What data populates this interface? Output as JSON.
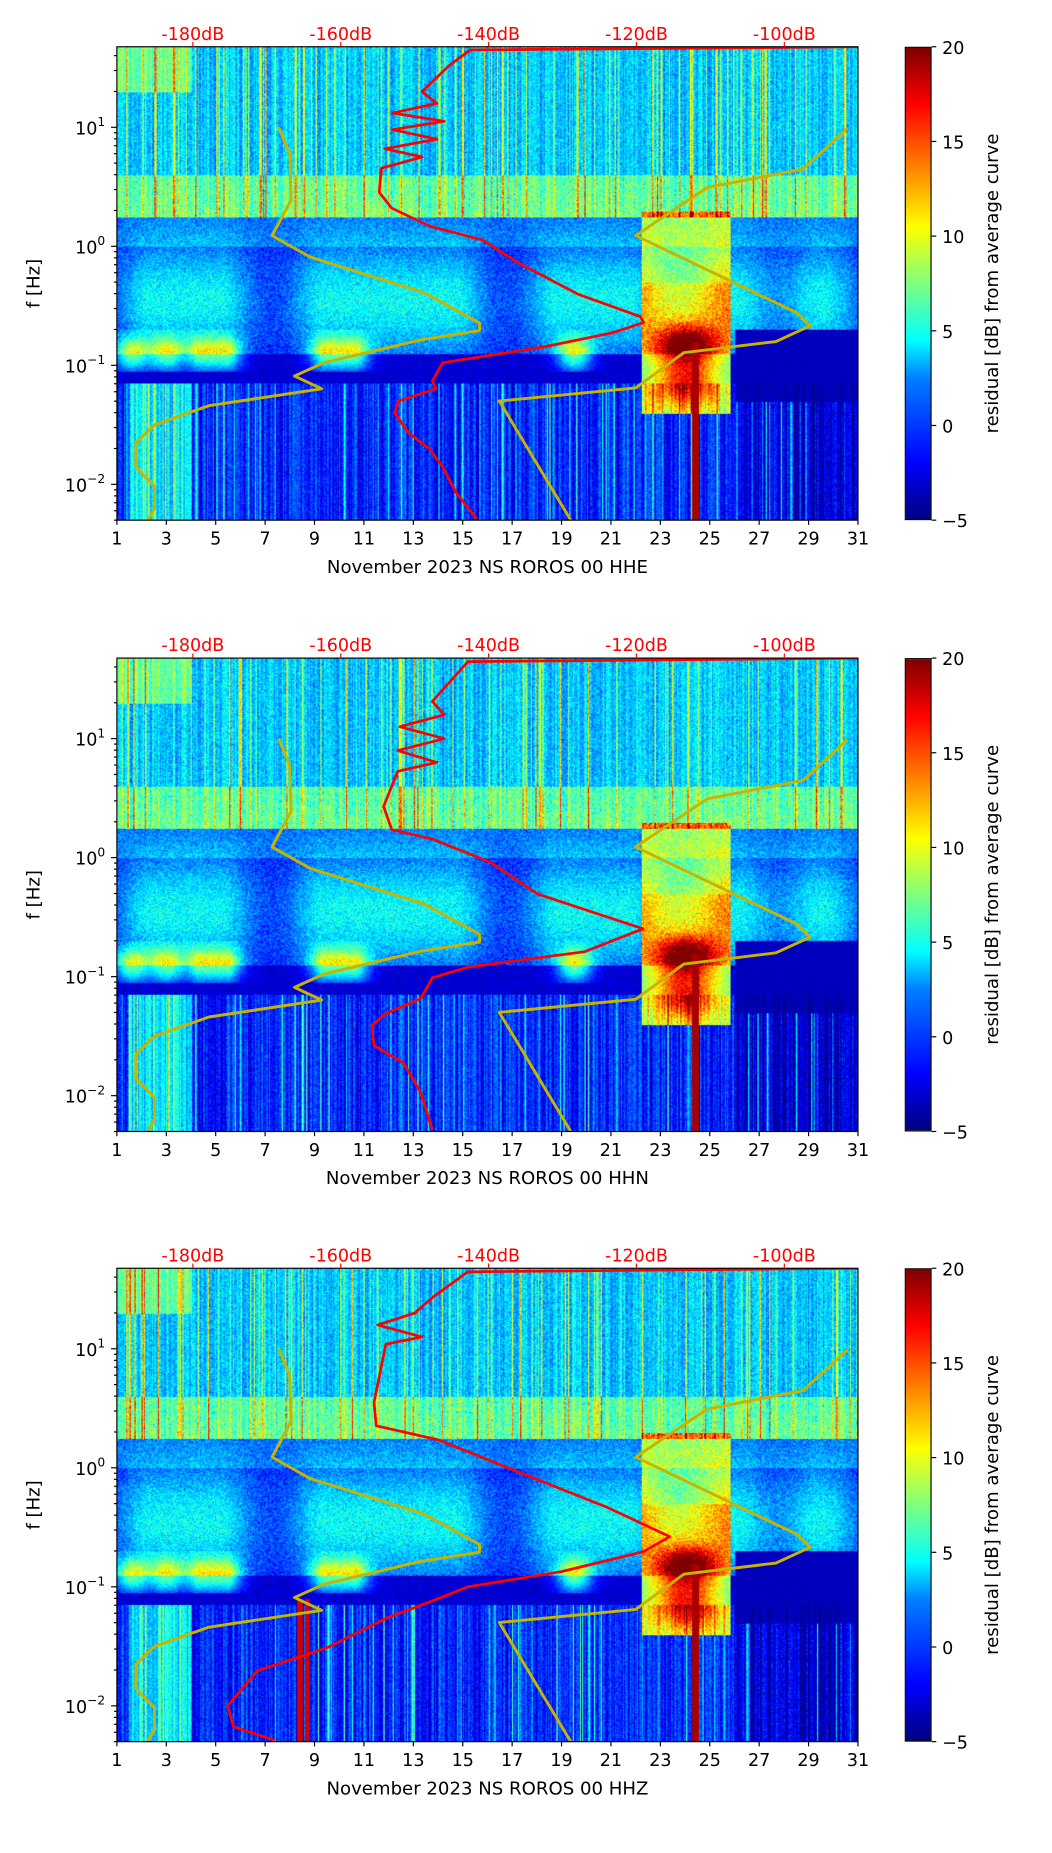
{
  "chart_data": [
    {
      "type": "heatmap",
      "xlabel": "November 2023 NS ROROS 00 HHE",
      "ylabel": "f [Hz]",
      "x_ticks": [
        "1",
        "3",
        "5",
        "7",
        "9",
        "11",
        "13",
        "15",
        "17",
        "19",
        "21",
        "23",
        "25",
        "27",
        "29",
        "31"
      ],
      "xlim": [
        1,
        31
      ],
      "y_scale": "log",
      "ylim": [
        0.005,
        47.5
      ],
      "y_ticks": [
        {
          "exp": "1",
          "value": 10
        },
        {
          "exp": "0",
          "value": 1
        },
        {
          "exp": "−1",
          "value": 0.1
        },
        {
          "exp": "−2",
          "value": 0.01
        }
      ],
      "top_axis_ticks": [
        "-180dB",
        "-160dB",
        "-140dB",
        "-120dB",
        "-100dB"
      ],
      "top_axis_values": [
        -180,
        -160,
        -140,
        -120,
        -100
      ],
      "colorbar": {
        "label": "residual [dB] from average curve",
        "range": [
          -5,
          20
        ],
        "ticks": [
          "20",
          "15",
          "10",
          "5",
          "0",
          "−5"
        ]
      },
      "red_curve": {
        "units": "dB vs log10(f)",
        "points": [
          [
            -90,
            1.676
          ],
          [
            -142.5,
            1.65
          ],
          [
            -145.3,
            1.52
          ],
          [
            -149,
            1.3
          ],
          [
            -147,
            1.2
          ],
          [
            -153,
            1.12
          ],
          [
            -146,
            1.05
          ],
          [
            -153,
            0.98
          ],
          [
            -147,
            0.9
          ],
          [
            -154,
            0.82
          ],
          [
            -149,
            0.75
          ],
          [
            -154.5,
            0.656
          ],
          [
            -154.8,
            0.454
          ],
          [
            -153.1,
            0.32
          ],
          [
            -148,
            0.17
          ],
          [
            -140.7,
            0.05
          ],
          [
            -136.1,
            -0.136
          ],
          [
            -127.8,
            -0.405
          ],
          [
            -119.5,
            -0.59
          ],
          [
            -119,
            -0.64
          ],
          [
            -123.2,
            -0.726
          ],
          [
            -132.4,
            -0.844
          ],
          [
            -146.2,
            -0.978
          ],
          [
            -147.6,
            -1.13
          ],
          [
            -147.1,
            -1.197
          ],
          [
            -152.2,
            -1.3
          ],
          [
            -152.7,
            -1.4
          ],
          [
            -150.8,
            -1.57
          ],
          [
            -148,
            -1.7
          ],
          [
            -146.2,
            -1.855
          ],
          [
            -144.4,
            -2.07
          ],
          [
            -141.6,
            -2.29
          ]
        ]
      }
    },
    {
      "type": "heatmap",
      "xlabel": "November 2023 NS ROROS 00 HHN",
      "ylabel": "f [Hz]",
      "x_ticks": [
        "1",
        "3",
        "5",
        "7",
        "9",
        "11",
        "13",
        "15",
        "17",
        "19",
        "21",
        "23",
        "25",
        "27",
        "29",
        "31"
      ],
      "xlim": [
        1,
        31
      ],
      "y_scale": "log",
      "ylim": [
        0.005,
        47.5
      ],
      "y_ticks": [
        {
          "exp": "1",
          "value": 10
        },
        {
          "exp": "0",
          "value": 1
        },
        {
          "exp": "−1",
          "value": 0.1
        },
        {
          "exp": "−2",
          "value": 0.01
        }
      ],
      "top_axis_ticks": [
        "-180dB",
        "-160dB",
        "-140dB",
        "-120dB",
        "-100dB"
      ],
      "top_axis_values": [
        -180,
        -160,
        -140,
        -120,
        -100
      ],
      "colorbar": {
        "label": "residual [dB] from average curve",
        "range": [
          -5,
          20
        ],
        "ticks": [
          "20",
          "15",
          "10",
          "5",
          "0",
          "−5"
        ]
      },
      "red_curve": {
        "units": "dB vs log10(f)",
        "points": [
          [
            -90,
            1.676
          ],
          [
            -142.8,
            1.647
          ],
          [
            -147.6,
            1.313
          ],
          [
            -146,
            1.2
          ],
          [
            -152,
            1.1
          ],
          [
            -146,
            1.0
          ],
          [
            -152.3,
            0.9
          ],
          [
            -147,
            0.8
          ],
          [
            -152.3,
            0.725
          ],
          [
            -154.2,
            0.43
          ],
          [
            -153.1,
            0.235
          ],
          [
            -147.6,
            0.156
          ],
          [
            -139.7,
            -0.04
          ],
          [
            -133.4,
            -0.305
          ],
          [
            -123.9,
            -0.5
          ],
          [
            -119.1,
            -0.598
          ],
          [
            -127,
            -0.79
          ],
          [
            -142.8,
            -0.92
          ],
          [
            -147.6,
            -1.01
          ],
          [
            -149.2,
            -1.186
          ],
          [
            -153.9,
            -1.31
          ],
          [
            -155.8,
            -1.41
          ],
          [
            -155.5,
            -1.579
          ],
          [
            -151.5,
            -1.725
          ],
          [
            -149.2,
            -1.97
          ],
          [
            -147.6,
            -2.29
          ]
        ]
      }
    },
    {
      "type": "heatmap",
      "xlabel": "November 2023 NS ROROS 00 HHZ",
      "ylabel": "f [Hz]",
      "x_ticks": [
        "1",
        "3",
        "5",
        "7",
        "9",
        "11",
        "13",
        "15",
        "17",
        "19",
        "21",
        "23",
        "25",
        "27",
        "29",
        "31"
      ],
      "xlim": [
        1,
        31
      ],
      "y_scale": "log",
      "ylim": [
        0.005,
        47.5
      ],
      "y_ticks": [
        {
          "exp": "1",
          "value": 10
        },
        {
          "exp": "0",
          "value": 1
        },
        {
          "exp": "−1",
          "value": 0.1
        },
        {
          "exp": "−2",
          "value": 0.01
        }
      ],
      "top_axis_ticks": [
        "-180dB",
        "-160dB",
        "-140dB",
        "-120dB",
        "-100dB"
      ],
      "top_axis_values": [
        -180,
        -160,
        -140,
        -120,
        -100
      ],
      "colorbar": {
        "label": "residual [dB] from average curve",
        "range": [
          -5,
          20
        ],
        "ticks": [
          "20",
          "15",
          "10",
          "5",
          "0",
          "−5"
        ]
      },
      "red_curve": {
        "units": "dB vs log10(f)",
        "points": [
          [
            -90,
            1.676
          ],
          [
            -142.8,
            1.647
          ],
          [
            -147.6,
            1.431
          ],
          [
            -150,
            1.3
          ],
          [
            -155,
            1.2
          ],
          [
            -149,
            1.1
          ],
          [
            -153.9,
            1.039
          ],
          [
            -155.5,
            0.549
          ],
          [
            -155.2,
            0.353
          ],
          [
            -146.8,
            0.235
          ],
          [
            -139.7,
            0.058
          ],
          [
            -131.8,
            -0.138
          ],
          [
            -123.9,
            -0.334
          ],
          [
            -115.5,
            -0.578
          ],
          [
            -119.1,
            -0.706
          ],
          [
            -130.2,
            -0.873
          ],
          [
            -142.8,
            -1.0
          ],
          [
            -147.6,
            -1.118
          ],
          [
            -153.9,
            -1.265
          ],
          [
            -161.8,
            -1.51
          ],
          [
            -171.3,
            -1.706
          ],
          [
            -175.3,
            -2.0
          ],
          [
            -174.5,
            -2.176
          ],
          [
            -168.9,
            -2.29
          ]
        ]
      }
    }
  ],
  "yellow_curve": {
    "units": "day vs log10(f)",
    "segments": [
      [
        [
          7.55,
          1.0
        ],
        [
          8.0,
          0.774
        ],
        [
          8.05,
          0.387
        ],
        [
          7.28,
          0.09
        ],
        [
          8.82,
          -0.09
        ],
        [
          13.44,
          -0.389
        ],
        [
          15.68,
          -0.645
        ],
        [
          15.68,
          -0.709
        ],
        [
          13.3,
          -0.786
        ],
        [
          9.38,
          -0.978
        ],
        [
          8.19,
          -1.09
        ],
        [
          9.29,
          -1.197
        ],
        [
          4.73,
          -1.339
        ],
        [
          2.52,
          -1.5
        ],
        [
          1.77,
          -1.652
        ],
        [
          1.77,
          -1.855
        ],
        [
          2.52,
          -2.017
        ],
        [
          2.52,
          -2.2
        ],
        [
          2.24,
          -2.31
        ]
      ],
      [
        [
          19.4,
          -2.31
        ],
        [
          16.48,
          -1.3
        ],
        [
          22.0,
          -1.19
        ],
        [
          23.95,
          -0.894
        ],
        [
          27.68,
          -0.8
        ],
        [
          29.06,
          -0.668
        ],
        [
          28.51,
          -0.557
        ],
        [
          22.0,
          0.09
        ],
        [
          24.9,
          0.494
        ],
        [
          28.78,
          0.65
        ],
        [
          30.58,
          0.993
        ]
      ]
    ]
  },
  "colors": {
    "red_curve": "#ff0000",
    "yellow_curve": "#c8b400",
    "top_axis_text": "#ff0000"
  }
}
